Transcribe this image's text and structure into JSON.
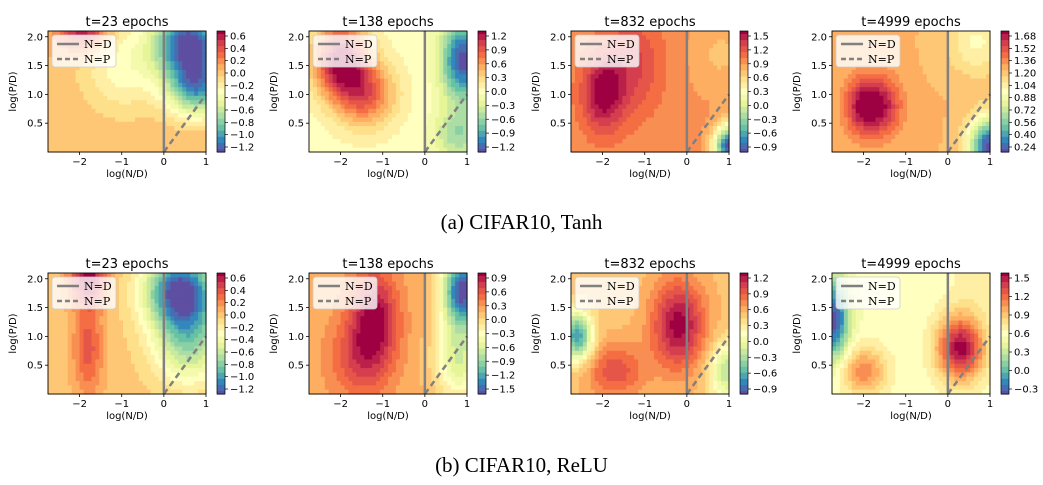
{
  "captions": [
    "(a) CIFAR10, Tanh",
    "(b) CIFAR10, ReLU"
  ],
  "colors": {
    "colormap": "Spectral_r",
    "ref_line": "#808080"
  },
  "chart_data": [
    {
      "type": "heatmap",
      "row": 0,
      "col": 0,
      "title": "t=23 epochs",
      "xlabel": "log(N/D)",
      "ylabel": "log(P/D)",
      "xlim": [
        -2.75,
        1
      ],
      "ylim": [
        0,
        2.1
      ],
      "xticks": [
        -2,
        -1,
        0,
        1
      ],
      "yticks": [
        0.5,
        1.0,
        1.5,
        2.0
      ],
      "ytick_labels": [
        "0.5",
        "1.0",
        "1.5",
        "2.0"
      ],
      "colorbar_ticks": [
        "0.6",
        "0.4",
        "0.2",
        "0.0",
        "−0.2",
        "−0.4",
        "−0.6",
        "−0.8",
        "−1.0",
        "−1.2"
      ],
      "zlim": [
        -1.3,
        0.7
      ],
      "levels": 20,
      "legend": [
        {
          "label": "N=D",
          "style": "solid"
        },
        {
          "label": "N=P",
          "style": "dashed"
        }
      ],
      "legend_position": "upper-left",
      "peaks": [
        {
          "x": -1.9,
          "y": 2.1,
          "value": 0.7,
          "sx": 0.4,
          "sy": 0.25
        },
        {
          "x": 0.6,
          "y": 1.9,
          "value": -1.3,
          "sx": 0.6,
          "sy": 0.45
        },
        {
          "x": 0.8,
          "y": 1.1,
          "value": -0.9,
          "sx": 0.5,
          "sy": 0.35
        },
        {
          "x": -1.0,
          "y": 1.5,
          "value": -0.3,
          "sx": 0.7,
          "sy": 0.6
        }
      ],
      "base": 0.05
    },
    {
      "type": "heatmap",
      "row": 0,
      "col": 1,
      "title": "t=138 epochs",
      "xlabel": "log(N/D)",
      "ylabel": "log(P/D)",
      "xlim": [
        -2.75,
        1
      ],
      "ylim": [
        0,
        2.1
      ],
      "xticks": [
        -2,
        -1,
        0,
        1
      ],
      "yticks": [
        0.5,
        1.0,
        1.5,
        2.0
      ],
      "ytick_labels": [
        "0.5",
        "1.0",
        "1.5",
        "2.0"
      ],
      "colorbar_ticks": [
        "1.2",
        "0.9",
        "0.6",
        "0.3",
        "0.0",
        "−0.3",
        "−0.6",
        "−0.9",
        "−1.2"
      ],
      "zlim": [
        -1.4,
        1.4
      ],
      "levels": 20,
      "legend": [
        {
          "label": "N=D",
          "style": "solid"
        },
        {
          "label": "N=P",
          "style": "dashed"
        }
      ],
      "legend_position": "upper-left",
      "peaks": [
        {
          "x": -2.0,
          "y": 1.6,
          "value": 1.4,
          "sx": 0.45,
          "sy": 0.45
        },
        {
          "x": -1.4,
          "y": 1.0,
          "value": 0.9,
          "sx": 0.5,
          "sy": 0.4
        },
        {
          "x": 0.9,
          "y": 1.6,
          "value": -1.4,
          "sx": 0.35,
          "sy": 0.5
        },
        {
          "x": 0.8,
          "y": 0.3,
          "value": -0.6,
          "sx": 0.4,
          "sy": 0.3
        }
      ],
      "base": 0.0
    },
    {
      "type": "heatmap",
      "row": 0,
      "col": 2,
      "title": "t=832 epochs",
      "xlabel": "log(N/D)",
      "ylabel": "log(P/D)",
      "xlim": [
        -2.75,
        1
      ],
      "ylim": [
        0,
        2.1
      ],
      "xticks": [
        -2,
        -1,
        0,
        1
      ],
      "yticks": [
        0.5,
        1.0,
        1.5,
        2.0
      ],
      "ytick_labels": [
        "0.5",
        "1.0",
        "1.5",
        "2.0"
      ],
      "colorbar_ticks": [
        "1.5",
        "1.2",
        "0.9",
        "0.6",
        "0.3",
        "0.0",
        "−0.3",
        "−0.6",
        "−0.9"
      ],
      "zlim": [
        -1.1,
        1.6
      ],
      "levels": 20,
      "legend": [
        {
          "label": "N=D",
          "style": "solid"
        },
        {
          "label": "N=P",
          "style": "dashed"
        }
      ],
      "legend_position": "upper-left",
      "peaks": [
        {
          "x": -2.0,
          "y": 1.0,
          "value": 1.6,
          "sx": 0.35,
          "sy": 0.45
        },
        {
          "x": -1.3,
          "y": 1.5,
          "value": 1.3,
          "sx": 0.5,
          "sy": 0.6
        },
        {
          "x": 1.0,
          "y": 0.1,
          "value": -1.1,
          "sx": 0.25,
          "sy": 0.25
        },
        {
          "x": 0.8,
          "y": 1.7,
          "value": 0.7,
          "sx": 0.5,
          "sy": 0.5
        }
      ],
      "base": 0.9
    },
    {
      "type": "heatmap",
      "row": 0,
      "col": 3,
      "title": "t=4999 epochs",
      "xlabel": "log(N/D)",
      "ylabel": "log(P/D)",
      "xlim": [
        -2.75,
        1
      ],
      "ylim": [
        0,
        2.1
      ],
      "xticks": [
        -2,
        -1,
        0,
        1
      ],
      "yticks": [
        0.5,
        1.0,
        1.5,
        2.0
      ],
      "ytick_labels": [
        "0.5",
        "1.0",
        "1.5",
        "2.0"
      ],
      "colorbar_ticks": [
        "1.68",
        "1.52",
        "1.36",
        "1.20",
        "1.04",
        "0.88",
        "0.72",
        "0.56",
        "0.40",
        "0.24"
      ],
      "zlim": [
        0.2,
        1.75
      ],
      "levels": 20,
      "legend": [
        {
          "label": "N=D",
          "style": "solid"
        },
        {
          "label": "N=P",
          "style": "dashed"
        }
      ],
      "legend_position": "upper-left",
      "peaks": [
        {
          "x": -2.0,
          "y": 0.8,
          "value": 1.75,
          "sx": 0.3,
          "sy": 0.35
        },
        {
          "x": -1.5,
          "y": 0.8,
          "value": 1.6,
          "sx": 0.3,
          "sy": 0.35
        },
        {
          "x": 1.0,
          "y": 0.1,
          "value": 0.2,
          "sx": 0.35,
          "sy": 0.35
        },
        {
          "x": 0.7,
          "y": 1.9,
          "value": 1.0,
          "sx": 0.5,
          "sy": 0.4
        }
      ],
      "base": 1.25
    },
    {
      "type": "heatmap",
      "row": 1,
      "col": 0,
      "title": "t=23 epochs",
      "xlabel": "log(N/D)",
      "ylabel": "log(P/D)",
      "xlim": [
        -2.75,
        1
      ],
      "ylim": [
        0,
        2.1
      ],
      "xticks": [
        -2,
        -1,
        0,
        1
      ],
      "yticks": [
        0.5,
        1.0,
        1.5,
        2.0
      ],
      "ytick_labels": [
        "0.5",
        "1.0",
        "1.5",
        "2.0"
      ],
      "colorbar_ticks": [
        "0.6",
        "0.4",
        "0.2",
        "0.0",
        "−0.2",
        "−0.4",
        "−0.6",
        "−0.8",
        "−1.0",
        "−1.2"
      ],
      "zlim": [
        -1.3,
        0.7
      ],
      "levels": 20,
      "legend": [
        {
          "label": "N=D",
          "style": "solid"
        },
        {
          "label": "N=P",
          "style": "dashed"
        }
      ],
      "legend_position": "upper-left",
      "peaks": [
        {
          "x": -1.8,
          "y": 2.0,
          "value": 0.7,
          "sx": 0.3,
          "sy": 0.3
        },
        {
          "x": -1.8,
          "y": 0.8,
          "value": 0.4,
          "sx": 0.25,
          "sy": 0.6
        },
        {
          "x": 0.4,
          "y": 1.8,
          "value": -1.3,
          "sx": 0.6,
          "sy": 0.45
        },
        {
          "x": 0.6,
          "y": 0.9,
          "value": -0.7,
          "sx": 0.6,
          "sy": 0.5
        }
      ],
      "base": 0.0
    },
    {
      "type": "heatmap",
      "row": 1,
      "col": 1,
      "title": "t=138 epochs",
      "xlabel": "log(N/D)",
      "ylabel": "log(P/D)",
      "xlim": [
        -2.75,
        1
      ],
      "ylim": [
        0,
        2.1
      ],
      "xticks": [
        -2,
        -1,
        0,
        1
      ],
      "yticks": [
        0.5,
        1.0,
        1.5,
        2.0
      ],
      "ytick_labels": [
        "0.5",
        "1.0",
        "1.5",
        "2.0"
      ],
      "colorbar_ticks": [
        "0.9",
        "0.6",
        "0.3",
        "0.0",
        "−0.3",
        "−0.6",
        "−0.9",
        "−1.2",
        "−1.5"
      ],
      "zlim": [
        -1.6,
        1.0
      ],
      "levels": 20,
      "legend": [
        {
          "label": "N=D",
          "style": "solid"
        },
        {
          "label": "N=P",
          "style": "dashed"
        }
      ],
      "legend_position": "upper-left",
      "peaks": [
        {
          "x": -1.2,
          "y": 1.3,
          "value": 1.0,
          "sx": 0.4,
          "sy": 0.6
        },
        {
          "x": -1.6,
          "y": 0.6,
          "value": 0.6,
          "sx": 0.5,
          "sy": 0.5
        },
        {
          "x": 0.9,
          "y": 1.8,
          "value": -1.6,
          "sx": 0.35,
          "sy": 0.45
        },
        {
          "x": 0.8,
          "y": 0.6,
          "value": -0.6,
          "sx": 0.4,
          "sy": 0.5
        }
      ],
      "base": 0.2
    },
    {
      "type": "heatmap",
      "row": 1,
      "col": 2,
      "title": "t=832 epochs",
      "xlabel": "log(N/D)",
      "ylabel": "log(P/D)",
      "xlim": [
        -2.75,
        1
      ],
      "ylim": [
        0,
        2.1
      ],
      "xticks": [
        -2,
        -1,
        0,
        1
      ],
      "yticks": [
        0.5,
        1.0,
        1.5,
        2.0
      ],
      "ytick_labels": [
        "0.5",
        "1.0",
        "1.5",
        "2.0"
      ],
      "colorbar_ticks": [
        "1.2",
        "0.9",
        "0.6",
        "0.3",
        "0.0",
        "−0.3",
        "−0.6",
        "−0.9"
      ],
      "zlim": [
        -1.1,
        1.35
      ],
      "levels": 20,
      "legend": [
        {
          "label": "N=D",
          "style": "solid"
        },
        {
          "label": "N=P",
          "style": "dashed"
        }
      ],
      "legend_position": "upper-left",
      "peaks": [
        {
          "x": -0.2,
          "y": 1.2,
          "value": 1.35,
          "sx": 0.45,
          "sy": 0.55
        },
        {
          "x": -2.6,
          "y": 1.0,
          "value": -0.8,
          "sx": 0.25,
          "sy": 0.3
        },
        {
          "x": 0.95,
          "y": 0.4,
          "value": -0.3,
          "sx": 0.3,
          "sy": 0.35
        },
        {
          "x": -1.7,
          "y": 0.4,
          "value": 1.0,
          "sx": 0.5,
          "sy": 0.35
        }
      ],
      "base": 0.5
    },
    {
      "type": "heatmap",
      "row": 1,
      "col": 3,
      "title": "t=4999 epochs",
      "xlabel": "log(N/D)",
      "ylabel": "log(P/D)",
      "xlim": [
        -2.75,
        1
      ],
      "ylim": [
        0,
        2.1
      ],
      "xticks": [
        -2,
        -1,
        0,
        1
      ],
      "yticks": [
        0.5,
        1.0,
        1.5,
        2.0
      ],
      "ytick_labels": [
        "0.5",
        "1.0",
        "1.5",
        "2.0"
      ],
      "colorbar_ticks": [
        "1.5",
        "1.2",
        "0.9",
        "0.6",
        "0.3",
        "0.0",
        "−0.3"
      ],
      "zlim": [
        -0.45,
        1.6
      ],
      "levels": 20,
      "legend": [
        {
          "label": "N=D",
          "style": "solid"
        },
        {
          "label": "N=P",
          "style": "dashed"
        }
      ],
      "legend_position": "upper-left",
      "peaks": [
        {
          "x": 0.3,
          "y": 0.8,
          "value": 1.6,
          "sx": 0.4,
          "sy": 0.4
        },
        {
          "x": -2.7,
          "y": 1.3,
          "value": -0.45,
          "sx": 0.25,
          "sy": 0.5
        },
        {
          "x": -2.0,
          "y": 0.4,
          "value": 1.1,
          "sx": 0.4,
          "sy": 0.3
        },
        {
          "x": 0.8,
          "y": 2.0,
          "value": 0.7,
          "sx": 0.5,
          "sy": 0.4
        }
      ],
      "base": 0.55
    }
  ]
}
